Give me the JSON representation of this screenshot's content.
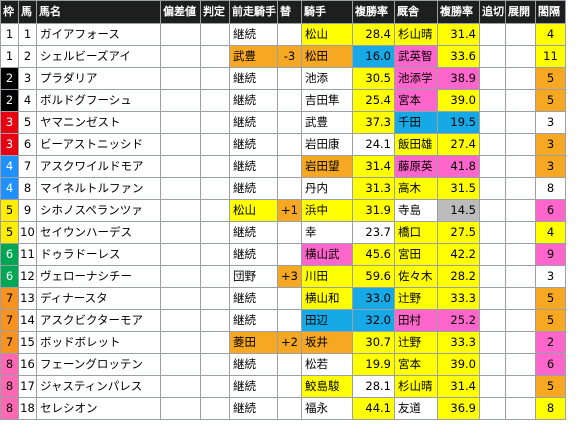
{
  "headers": [
    "枠",
    "馬",
    "馬名",
    "偏差値",
    "判定",
    "前走騎手",
    "替",
    "騎手",
    "複勝率",
    "厩舎",
    "複勝率",
    "追切",
    "展開",
    "閤隔"
  ],
  "wakuColors": {
    "1": "#ffffff",
    "2": "#000000",
    "3": "#e60012",
    "4": "#1e90ff",
    "5": "#ffee00",
    "6": "#00a651",
    "7": "#f7931e",
    "8": "#ff69b4"
  },
  "rows": [
    {
      "waku": "1",
      "ban": "1",
      "name": "ガイアフォース",
      "prev": "継続",
      "chg": "",
      "jockey": "松山",
      "jrate": "28.4",
      "trainer": "杉山晴",
      "trate": "31.4",
      "hl": "4"
    },
    {
      "waku": "1",
      "ban": "2",
      "name": "シェルビーズアイ",
      "prev": "武豊",
      "chg": "-3",
      "jockey": "松田",
      "jrate": "16.0",
      "trainer": "武英智",
      "trate": "33.6",
      "hl": "11"
    },
    {
      "waku": "2",
      "ban": "3",
      "name": "プラダリア",
      "prev": "継続",
      "chg": "",
      "jockey": "池添",
      "jrate": "30.5",
      "trainer": "池添学",
      "trate": "38.9",
      "hl": "5"
    },
    {
      "waku": "2",
      "ban": "4",
      "name": "ボルドグフーシュ",
      "prev": "継続",
      "chg": "",
      "jockey": "吉田隼",
      "jrate": "25.4",
      "trainer": "宮本",
      "trate": "39.0",
      "hl": "5"
    },
    {
      "waku": "3",
      "ban": "5",
      "name": "ヤマニンゼスト",
      "prev": "継続",
      "chg": "",
      "jockey": "武豊",
      "jrate": "37.3",
      "trainer": "千田",
      "trate": "19.5",
      "hl": "3"
    },
    {
      "waku": "3",
      "ban": "6",
      "name": "ビーアストニッシド",
      "prev": "継続",
      "chg": "",
      "jockey": "岩田康",
      "jrate": "24.1",
      "trainer": "飯田雄",
      "trate": "27.4",
      "hl": "3"
    },
    {
      "waku": "4",
      "ban": "7",
      "name": "アスクワイルドモア",
      "prev": "継続",
      "chg": "",
      "jockey": "岩田望",
      "jrate": "31.4",
      "trainer": "藤原英",
      "trate": "41.8",
      "hl": "3"
    },
    {
      "waku": "4",
      "ban": "8",
      "name": "マイネルトルファン",
      "prev": "継続",
      "chg": "",
      "jockey": "丹内",
      "jrate": "31.3",
      "trainer": "高木",
      "trate": "31.5",
      "hl": "8"
    },
    {
      "waku": "5",
      "ban": "9",
      "name": "シホノスペランツァ",
      "prev": "松山",
      "chg": "+1",
      "jockey": "浜中",
      "jrate": "31.9",
      "trainer": "寺島",
      "trate": "14.5",
      "hl": "6"
    },
    {
      "waku": "5",
      "ban": "10",
      "name": "セイウンハーデス",
      "prev": "継続",
      "chg": "",
      "jockey": "幸",
      "jrate": "23.7",
      "trainer": "橋口",
      "trate": "27.5",
      "hl": "4"
    },
    {
      "waku": "6",
      "ban": "11",
      "name": "ドゥラドーレス",
      "prev": "継続",
      "chg": "",
      "jockey": "横山武",
      "jrate": "45.6",
      "trainer": "宮田",
      "trate": "42.2",
      "hl": "9"
    },
    {
      "waku": "6",
      "ban": "12",
      "name": "ヴェローナシチー",
      "prev": "団野",
      "chg": "+3",
      "jockey": "川田",
      "jrate": "59.6",
      "trainer": "佐々木",
      "trate": "28.2",
      "hl": "3"
    },
    {
      "waku": "7",
      "ban": "13",
      "name": "ディナースタ",
      "prev": "継続",
      "chg": "",
      "jockey": "横山和",
      "jrate": "33.0",
      "trainer": "辻野",
      "trate": "33.3",
      "hl": "5"
    },
    {
      "waku": "7",
      "ban": "14",
      "name": "アスクビクターモア",
      "prev": "継続",
      "chg": "",
      "jockey": "田辺",
      "jrate": "32.0",
      "trainer": "田村",
      "trate": "25.2",
      "hl": "5"
    },
    {
      "waku": "7",
      "ban": "15",
      "name": "ボッドボレット",
      "prev": "菱田",
      "chg": "+2",
      "jockey": "坂井",
      "jrate": "30.7",
      "trainer": "辻野",
      "trate": "33.3",
      "hl": "2"
    },
    {
      "waku": "8",
      "ban": "16",
      "name": "フェーングロッテン",
      "prev": "継続",
      "chg": "",
      "jockey": "松若",
      "jrate": "19.9",
      "trainer": "宮本",
      "trate": "39.0",
      "hl": "6"
    },
    {
      "waku": "8",
      "ban": "17",
      "name": "ジャスティンパレス",
      "prev": "継続",
      "chg": "",
      "jockey": "鮫島駿",
      "jrate": "28.1",
      "trainer": "杉山晴",
      "trate": "31.4",
      "hl": "5"
    },
    {
      "waku": "8",
      "ban": "18",
      "name": "セレシオン",
      "prev": "継続",
      "chg": "",
      "jockey": "福永",
      "jrate": "44.1",
      "trainer": "友道",
      "trate": "36.9",
      "hl": "8"
    }
  ]
}
